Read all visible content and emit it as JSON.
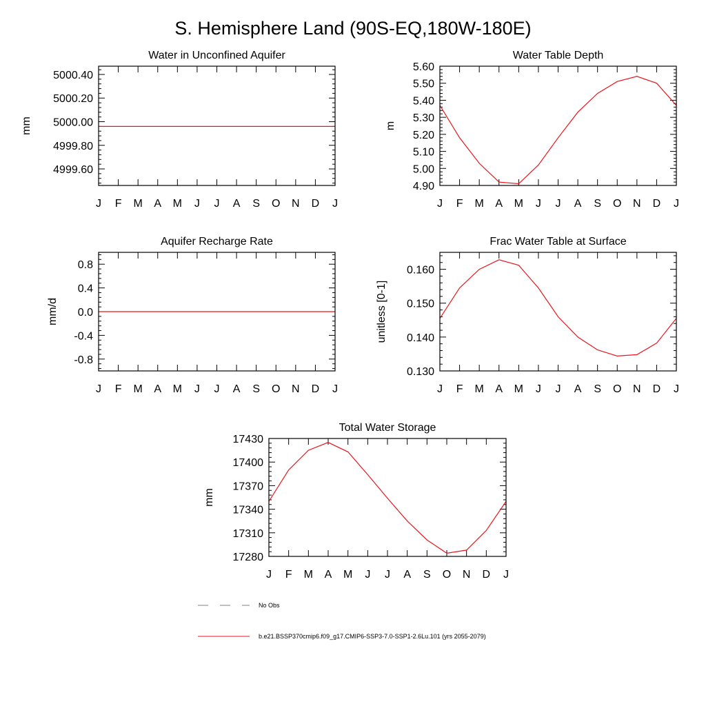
{
  "figure": {
    "title": "S. Hemisphere Land (90S-EQ,180W-180E)"
  },
  "legend": {
    "entries": [
      {
        "label": "No Obs",
        "style": "dashed",
        "color": "#7f7f7f"
      },
      {
        "label": "b.e21.BSSP370cmip6.f09_g17.CMIP6-SSP3-7.0-SSP1-2.6Lu.101 (yrs 2055-2079)",
        "style": "solid",
        "color": "#e8141a"
      }
    ]
  },
  "chart_data": [
    {
      "type": "line",
      "title": "Water in Unconfined Aquifer",
      "xlabel": "",
      "ylabel": "mm",
      "categories": [
        "J",
        "F",
        "M",
        "A",
        "M",
        "J",
        "J",
        "A",
        "S",
        "O",
        "N",
        "D",
        "J"
      ],
      "yticks": [
        4999.6,
        4999.8,
        5000.0,
        5000.2,
        5000.4
      ],
      "ytick_labels": [
        "4999.60",
        "4999.80",
        "5000.00",
        "5000.20",
        "5000.40"
      ],
      "ylim": [
        4999.46,
        5000.47
      ],
      "series": [
        {
          "color": "#e8141a",
          "values": [
            4999.96,
            4999.96,
            4999.96,
            4999.96,
            4999.96,
            4999.96,
            4999.96,
            4999.96,
            4999.96,
            4999.96,
            4999.96,
            4999.96,
            4999.96
          ]
        }
      ],
      "grid": false
    },
    {
      "type": "line",
      "title": "Water Table Depth",
      "xlabel": "",
      "ylabel": "m",
      "categories": [
        "J",
        "F",
        "M",
        "A",
        "M",
        "J",
        "J",
        "A",
        "S",
        "O",
        "N",
        "D",
        "J"
      ],
      "yticks": [
        4.9,
        5.0,
        5.1,
        5.2,
        5.3,
        5.4,
        5.5,
        5.6
      ],
      "ytick_labels": [
        "4.90",
        "5.00",
        "5.10",
        "5.20",
        "5.30",
        "5.40",
        "5.50",
        "5.60"
      ],
      "ylim": [
        4.9,
        5.6
      ],
      "series": [
        {
          "color": "#e8141a",
          "values": [
            5.37,
            5.18,
            5.03,
            4.92,
            4.91,
            5.02,
            5.18,
            5.33,
            5.44,
            5.51,
            5.54,
            5.5,
            5.37
          ]
        }
      ],
      "grid": false
    },
    {
      "type": "line",
      "title": "Aquifer Recharge Rate",
      "xlabel": "",
      "ylabel": "mm/d",
      "categories": [
        "J",
        "F",
        "M",
        "A",
        "M",
        "J",
        "J",
        "A",
        "S",
        "O",
        "N",
        "D",
        "J"
      ],
      "yticks": [
        -0.8,
        -0.4,
        0.0,
        0.4,
        0.8
      ],
      "ytick_labels": [
        "-0.8",
        "-0.4",
        "0.0",
        "0.4",
        "0.8"
      ],
      "ylim": [
        -1.0,
        1.0
      ],
      "series": [
        {
          "color": "#e8141a",
          "values": [
            0,
            0,
            0,
            0,
            0,
            0,
            0,
            0,
            0,
            0,
            0,
            0,
            0
          ]
        }
      ],
      "grid": false
    },
    {
      "type": "line",
      "title": "Frac Water Table at Surface",
      "xlabel": "",
      "ylabel": "unitless [0-1]",
      "categories": [
        "J",
        "F",
        "M",
        "A",
        "M",
        "J",
        "J",
        "A",
        "S",
        "O",
        "N",
        "D",
        "J"
      ],
      "yticks": [
        0.13,
        0.14,
        0.15,
        0.16
      ],
      "ytick_labels": [
        "0.130",
        "0.140",
        "0.150",
        "0.160"
      ],
      "ylim": [
        0.13,
        0.165
      ],
      "series": [
        {
          "color": "#e8141a",
          "values": [
            0.1455,
            0.1545,
            0.16,
            0.1628,
            0.1612,
            0.1545,
            0.146,
            0.14,
            0.1362,
            0.1344,
            0.1348,
            0.1382,
            0.1455
          ]
        }
      ],
      "grid": false
    },
    {
      "type": "line",
      "title": "Total Water Storage",
      "xlabel": "",
      "ylabel": "mm",
      "categories": [
        "J",
        "F",
        "M",
        "A",
        "M",
        "J",
        "J",
        "A",
        "S",
        "O",
        "N",
        "D",
        "J"
      ],
      "yticks": [
        17280,
        17310,
        17340,
        17370,
        17400,
        17430
      ],
      "ytick_labels": [
        "17280",
        "17310",
        "17340",
        "17370",
        "17400",
        "17430"
      ],
      "ylim": [
        17280,
        17430
      ],
      "series": [
        {
          "color": "#e8141a",
          "values": [
            17350,
            17390,
            17415,
            17425,
            17413,
            17384,
            17354,
            17325,
            17301,
            17284,
            17288,
            17313,
            17350
          ]
        }
      ],
      "grid": false
    }
  ]
}
